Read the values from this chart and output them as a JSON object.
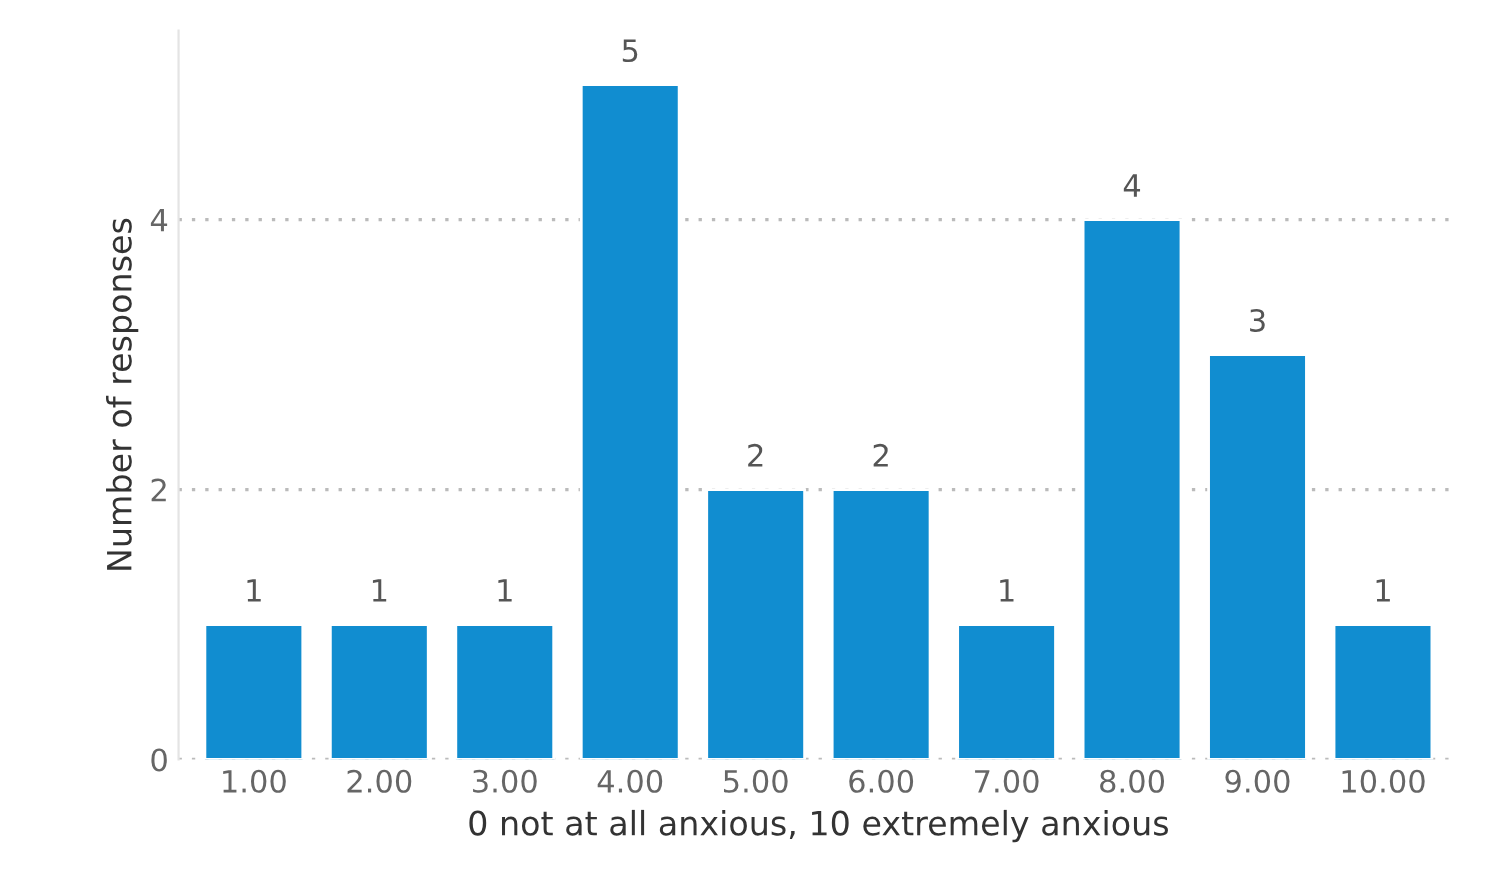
{
  "chart_data": {
    "type": "bar",
    "xlabel": "0 not at all anxious, 10 extremely anxious",
    "ylabel": "Number of responses",
    "categories": [
      "1.00",
      "2.00",
      "3.00",
      "4.00",
      "5.00",
      "6.00",
      "7.00",
      "8.00",
      "9.00",
      "10.00"
    ],
    "values": [
      1,
      1,
      1,
      5,
      2,
      2,
      1,
      4,
      3,
      1
    ],
    "color": "#118dd0",
    "ylim": [
      0,
      5.4
    ],
    "yticks": [
      0,
      2,
      4
    ],
    "grid": "y",
    "data_labels": true
  }
}
